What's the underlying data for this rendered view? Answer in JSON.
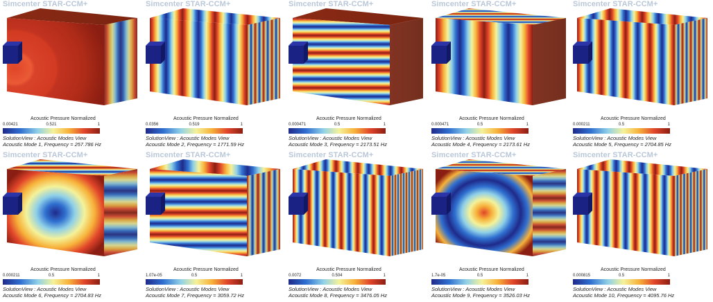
{
  "brand": "Simcenter STAR-CCM+",
  "caption_line1": "SolutionView : Acoustic Modes View",
  "legend_title": "Acoustic Pressure Normalized",
  "panels": [
    {
      "mode": "Acoustic Mode 1, Frequency = 257.786 Hz",
      "tmin": "0.00421",
      "tmid": "0.521",
      "tmax": "1"
    },
    {
      "mode": "Acoustic Mode 2, Frequency = 1771.59 Hz",
      "tmin": "0.0356",
      "tmid": "0.519",
      "tmax": "1"
    },
    {
      "mode": "Acoustic Mode 3, Frequency = 2173.51 Hz",
      "tmin": "0.000471",
      "tmid": "0.5",
      "tmax": "1"
    },
    {
      "mode": "Acoustic Mode 4, Frequency = 2173.61 Hz",
      "tmin": "0.000471",
      "tmid": "0.5",
      "tmax": "1"
    },
    {
      "mode": "Acoustic Mode 5, Frequency = 2704.85 Hz",
      "tmin": "0.000211",
      "tmid": "0.5",
      "tmax": "1"
    },
    {
      "mode": "Acoustic Mode 6, Frequency = 2704.83 Hz",
      "tmin": "0.000211",
      "tmid": "0.5",
      "tmax": "1"
    },
    {
      "mode": "Acoustic Mode 7, Frequency = 3059.72 Hz",
      "tmin": "1.07e-05",
      "tmid": "0.5",
      "tmax": "1"
    },
    {
      "mode": "Acoustic Mode 8, Frequency = 3476.05 Hz",
      "tmin": "0.0072",
      "tmid": "0.504",
      "tmax": "1"
    },
    {
      "mode": "Acoustic Mode 9, Frequency = 3526.03 Hz",
      "tmin": "1.7e-05",
      "tmid": "0.5",
      "tmax": "1"
    },
    {
      "mode": "Acoustic Mode 10, Frequency = 4095.76 Hz",
      "tmin": "0.000815",
      "tmid": "0.5",
      "tmax": "1"
    }
  ]
}
